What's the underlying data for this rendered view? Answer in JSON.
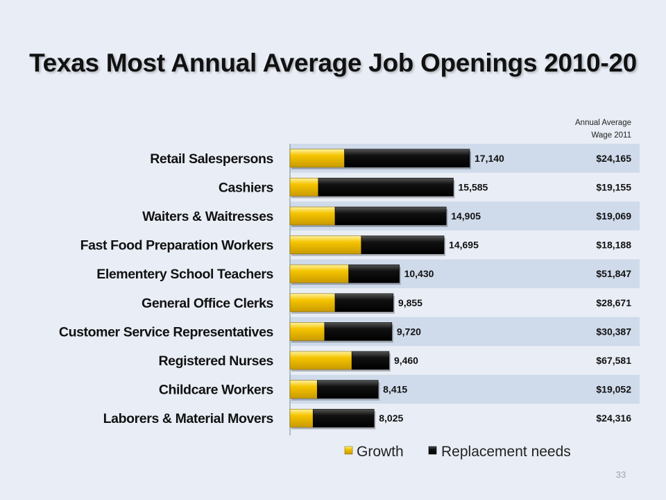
{
  "slide": {
    "title": "Texas Most Annual Average Job Openings 2010-20",
    "page_number": "33"
  },
  "wage_column": {
    "header_line1": "Annual Average",
    "header_line2": "Wage 2011"
  },
  "colors": {
    "growth": "#f5c400",
    "replacement": "#111111",
    "band": "#cfdaea",
    "background": "#e9eef6"
  },
  "chart_data": {
    "type": "bar",
    "orientation": "horizontal",
    "stacked": true,
    "title": "Texas Most Annual Average Job Openings 2010-20",
    "categories": [
      "Retail Salespersons",
      "Cashiers",
      "Waiters & Waitresses",
      "Fast Food Preparation Workers",
      "Elementery School Teachers",
      "General Office Clerks",
      "Customer Service Representatives",
      "Registered Nurses",
      "Childcare Workers",
      "Laborers & Material Movers"
    ],
    "series": [
      {
        "name": "Growth",
        "values": [
          5200,
          2700,
          4300,
          6800,
          5600,
          4300,
          3300,
          5900,
          2600,
          2200
        ]
      },
      {
        "name": "Replacement needs",
        "values": [
          11940,
          12885,
          10605,
          7895,
          4830,
          5555,
          6420,
          3560,
          5815,
          5825
        ]
      }
    ],
    "totals": [
      "17,140",
      "15,585",
      "14,905",
      "14,695",
      "10,430",
      "9,855",
      "9,720",
      "9,460",
      "8,415",
      "8,025"
    ],
    "wages": [
      "$24,165",
      "$19,155",
      "$19,069",
      "$18,188",
      "$51,847",
      "$28,671",
      "$30,387",
      "$67,581",
      "$19,052",
      "$24,316"
    ],
    "xlim": [
      0,
      20000
    ],
    "legend_position": "bottom"
  }
}
